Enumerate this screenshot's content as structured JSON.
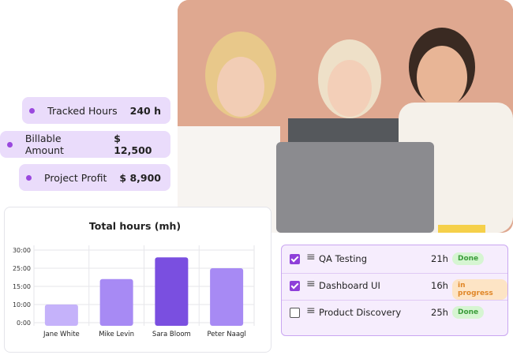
{
  "metrics": [
    {
      "label": "Tracked Hours",
      "value": "240 h"
    },
    {
      "label": "Billable Amount",
      "value": "$ 12,500"
    },
    {
      "label": "Project Profit",
      "value": "$ 8,900"
    }
  ],
  "chart_data": {
    "type": "bar",
    "title": "Total hours (mh)",
    "categories": [
      "Jane White",
      "Mike Levin",
      "Sara Bloom",
      "Peter Naagl"
    ],
    "values": [
      10,
      19,
      28,
      25
    ],
    "colors": [
      "#c5b2fa",
      "#a78af4",
      "#7a4fe0",
      "#a78af4"
    ],
    "ylim": [
      0,
      30
    ],
    "yticks": [
      {
        "value": 0,
        "label": "0:00"
      },
      {
        "value": 10,
        "label": "10:00"
      },
      {
        "value": 15,
        "label": "15:00"
      },
      {
        "value": 25,
        "label": "25:00"
      },
      {
        "value": 30,
        "label": "30:00"
      }
    ],
    "grid": true
  },
  "tasks": [
    {
      "name": "QA Testing",
      "hours": "21h",
      "status": "Done",
      "checked": true
    },
    {
      "name": "Dashboard UI",
      "hours": "16h",
      "status": "in progress",
      "checked": true
    },
    {
      "name": "Product Discovery",
      "hours": "25h",
      "status": "Done",
      "checked": false
    }
  ]
}
